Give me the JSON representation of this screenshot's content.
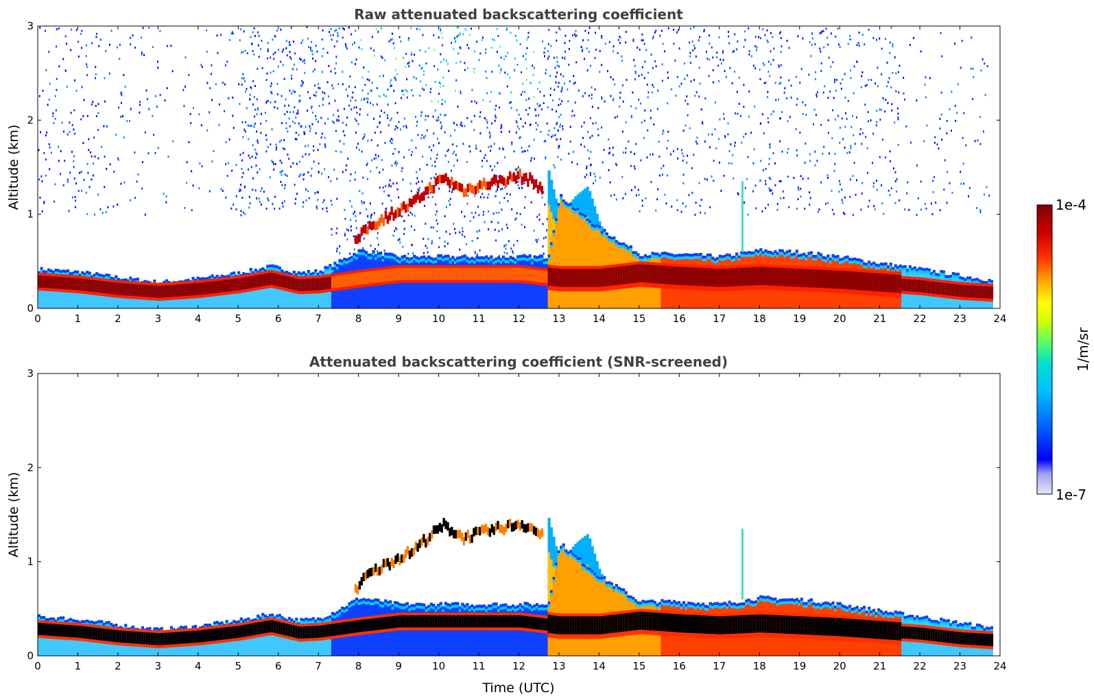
{
  "chart_data": [
    {
      "type": "heatmap",
      "title": "Raw attenuated backscattering coefficient",
      "xlabel": "",
      "ylabel": "Altitude (km)",
      "xlim": [
        0,
        24
      ],
      "ylim": [
        0,
        3
      ],
      "x_ticks": [
        "0",
        "1",
        "2",
        "3",
        "4",
        "5",
        "6",
        "7",
        "8",
        "9",
        "10",
        "11",
        "12",
        "13",
        "14",
        "15",
        "16",
        "17",
        "18",
        "19",
        "20",
        "21",
        "22",
        "23",
        "24"
      ],
      "y_ticks": [
        "0",
        "1",
        "2",
        "3"
      ],
      "boundary_layer_top_km": {
        "time_utc": [
          0,
          1,
          2,
          3,
          4,
          5,
          5.8,
          6.5,
          7,
          7.5,
          8,
          9,
          10,
          11,
          12,
          12.7,
          13,
          14,
          15,
          16,
          17,
          18,
          19,
          20,
          21,
          22,
          23,
          23.8
        ],
        "altitude_km": [
          0.42,
          0.39,
          0.33,
          0.28,
          0.32,
          0.38,
          0.45,
          0.38,
          0.4,
          0.5,
          0.62,
          0.55,
          0.55,
          0.55,
          0.55,
          0.55,
          1.2,
          0.85,
          0.58,
          0.58,
          0.55,
          0.62,
          0.6,
          0.55,
          0.48,
          0.42,
          0.35,
          0.3
        ]
      },
      "aerosol_layer_peak_km": {
        "time_utc": [
          0,
          1,
          2,
          3,
          4,
          5,
          5.8,
          6.5,
          7,
          7.5,
          8,
          9,
          10,
          11,
          12,
          13,
          14,
          15,
          16,
          17,
          18,
          19,
          20,
          21,
          22,
          23,
          23.8
        ],
        "altitude_km": [
          0.27,
          0.24,
          0.19,
          0.16,
          0.19,
          0.24,
          0.3,
          0.23,
          0.24,
          0.27,
          0.3,
          0.35,
          0.35,
          0.35,
          0.35,
          0.3,
          0.3,
          0.35,
          0.32,
          0.3,
          0.32,
          0.3,
          0.28,
          0.25,
          0.22,
          0.17,
          0.15
        ]
      },
      "elevated_layer_km": {
        "time_utc": [
          7.9,
          8.2,
          8.8,
          9.3,
          9.7,
          10.1,
          10.6,
          11.0,
          11.5,
          12.0,
          12.3,
          12.6
        ],
        "altitude_km": [
          0.7,
          0.85,
          1.0,
          1.1,
          1.25,
          1.38,
          1.25,
          1.3,
          1.35,
          1.4,
          1.35,
          1.25
        ]
      }
    },
    {
      "type": "heatmap",
      "title": "Attenuated backscattering coefficient (SNR-screened)",
      "xlabel": "Time (UTC)",
      "ylabel": "Altitude (km)",
      "xlim": [
        0,
        24
      ],
      "ylim": [
        0,
        3
      ],
      "x_ticks": [
        "0",
        "1",
        "2",
        "3",
        "4",
        "5",
        "6",
        "7",
        "8",
        "9",
        "10",
        "11",
        "12",
        "13",
        "14",
        "15",
        "16",
        "17",
        "18",
        "19",
        "20",
        "21",
        "22",
        "23",
        "24"
      ],
      "y_ticks": [
        "0",
        "1",
        "2",
        "3"
      ],
      "screened": true
    }
  ],
  "colorbar": {
    "label": "1/m/sr",
    "max_label": "1e-4",
    "min_label": "1e-7",
    "colors": [
      "#e0e0f8",
      "#a0a0f0",
      "#0000ff",
      "#0060ff",
      "#00b0ff",
      "#00e0e0",
      "#40ff80",
      "#c0ff00",
      "#ffff00",
      "#ffb000",
      "#ff6000",
      "#ff0000",
      "#c00000",
      "#800000"
    ]
  }
}
